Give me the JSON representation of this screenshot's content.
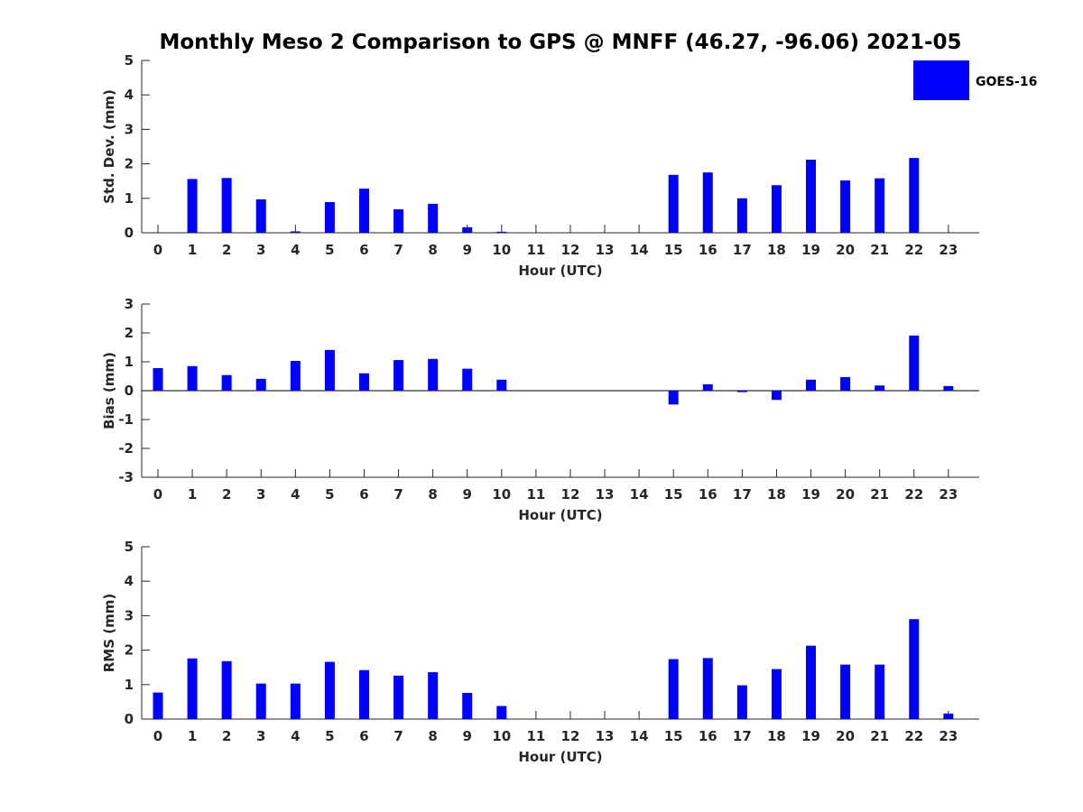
{
  "title": "Monthly Meso 2 Comparison to GPS @ MNFF (46.27, -96.06) 2021-05",
  "legend": {
    "label": "GOES-16",
    "color": "#0000ff",
    "position": "top-right"
  },
  "bar_color": "#0000ff",
  "chart_data": [
    {
      "type": "bar",
      "xlabel": "Hour (UTC)",
      "ylabel": "Std. Dev. (mm)",
      "categories": [
        "0",
        "1",
        "2",
        "3",
        "4",
        "5",
        "6",
        "7",
        "8",
        "9",
        "10",
        "11",
        "12",
        "13",
        "14",
        "15",
        "16",
        "17",
        "18",
        "19",
        "20",
        "21",
        "22",
        "23"
      ],
      "ylim": [
        0,
        5
      ],
      "yticks": [
        "0",
        "1",
        "2",
        "3",
        "4",
        "5"
      ],
      "series": [
        {
          "name": "GOES-16",
          "values": [
            0,
            1.56,
            1.59,
            0.97,
            0.04,
            0.89,
            1.28,
            0.68,
            0.84,
            0.16,
            0.03,
            0,
            0,
            0,
            0,
            1.68,
            1.75,
            1.0,
            1.38,
            2.12,
            1.52,
            1.58,
            2.17,
            0
          ]
        }
      ]
    },
    {
      "type": "bar",
      "xlabel": "Hour (UTC)",
      "ylabel": "Bias (mm)",
      "categories": [
        "0",
        "1",
        "2",
        "3",
        "4",
        "5",
        "6",
        "7",
        "8",
        "9",
        "10",
        "11",
        "12",
        "13",
        "14",
        "15",
        "16",
        "17",
        "18",
        "19",
        "20",
        "21",
        "22",
        "23"
      ],
      "ylim": [
        -3,
        3
      ],
      "yticks": [
        "-3",
        "-2",
        "-1",
        "0",
        "1",
        "2",
        "3"
      ],
      "series": [
        {
          "name": "GOES-16",
          "values": [
            0.78,
            0.85,
            0.54,
            0.41,
            1.03,
            1.41,
            0.6,
            1.06,
            1.1,
            0.76,
            0.38,
            0,
            0,
            0,
            0,
            -0.48,
            0.22,
            -0.05,
            -0.32,
            0.38,
            0.47,
            0.18,
            1.91,
            0.16
          ]
        }
      ]
    },
    {
      "type": "bar",
      "xlabel": "Hour (UTC)",
      "ylabel": "RMS (mm)",
      "categories": [
        "0",
        "1",
        "2",
        "3",
        "4",
        "5",
        "6",
        "7",
        "8",
        "9",
        "10",
        "11",
        "12",
        "13",
        "14",
        "15",
        "16",
        "17",
        "18",
        "19",
        "20",
        "21",
        "22",
        "23"
      ],
      "ylim": [
        0,
        5
      ],
      "yticks": [
        "0",
        "1",
        "2",
        "3",
        "4",
        "5"
      ],
      "series": [
        {
          "name": "GOES-16",
          "values": [
            0.77,
            1.76,
            1.68,
            1.03,
            1.03,
            1.66,
            1.42,
            1.26,
            1.36,
            0.76,
            0.38,
            0,
            0,
            0,
            0,
            1.74,
            1.77,
            0.98,
            1.45,
            2.13,
            1.58,
            1.58,
            2.9,
            0.16
          ]
        }
      ]
    }
  ]
}
